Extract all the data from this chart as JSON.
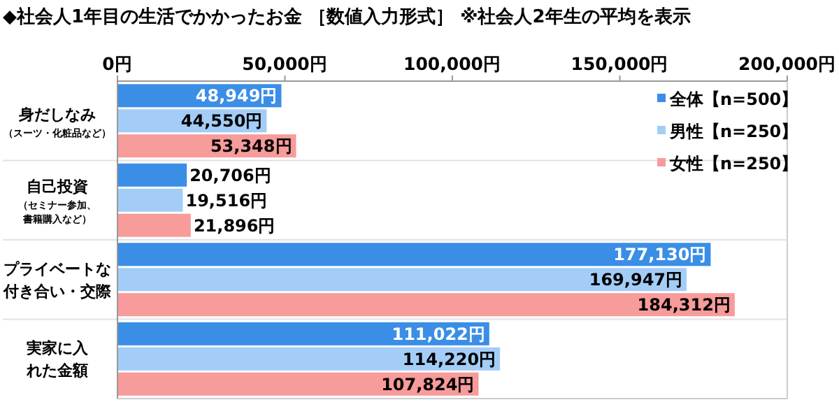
{
  "chart_data": {
    "type": "bar",
    "orientation": "horizontal",
    "title": "◆社会人1年目の生活でかかったお金 ［数値入力形式］ ※社会人2年生の平均を表示",
    "categories": [
      "身だしなみ（スーツ・化粧品など）",
      "自己投資（セミナー参加、書籍購入など）",
      "プライベートな付き合い・交際",
      "実家に入れた金額"
    ],
    "series": [
      {
        "name": "全体【n=500】",
        "color": "#3a8ee6",
        "values": [
          48949,
          20706,
          177130,
          111022
        ],
        "value_labels": [
          "48,949円",
          "20,706円",
          "177,130円",
          "111,022円"
        ]
      },
      {
        "name": "男性【n=250】",
        "color": "#a3cdf7",
        "values": [
          44550,
          19516,
          169947,
          114220
        ],
        "value_labels": [
          "44,550円",
          "19,516円",
          "169,947円",
          "114,220円"
        ]
      },
      {
        "name": "女性【n=250】",
        "color": "#f79b9b",
        "values": [
          53348,
          21896,
          184312,
          107824
        ],
        "value_labels": [
          "53,348円",
          "21,896円",
          "184,312円",
          "107,824円"
        ]
      }
    ],
    "xlim": [
      0,
      200000
    ],
    "xticks": [
      {
        "value": 0,
        "label": "0円"
      },
      {
        "value": 50000,
        "label": "50,000円"
      },
      {
        "value": 100000,
        "label": "100,000円"
      },
      {
        "value": 150000,
        "label": "150,000円"
      },
      {
        "value": 200000,
        "label": "200,000円"
      }
    ],
    "legend": "top right"
  }
}
